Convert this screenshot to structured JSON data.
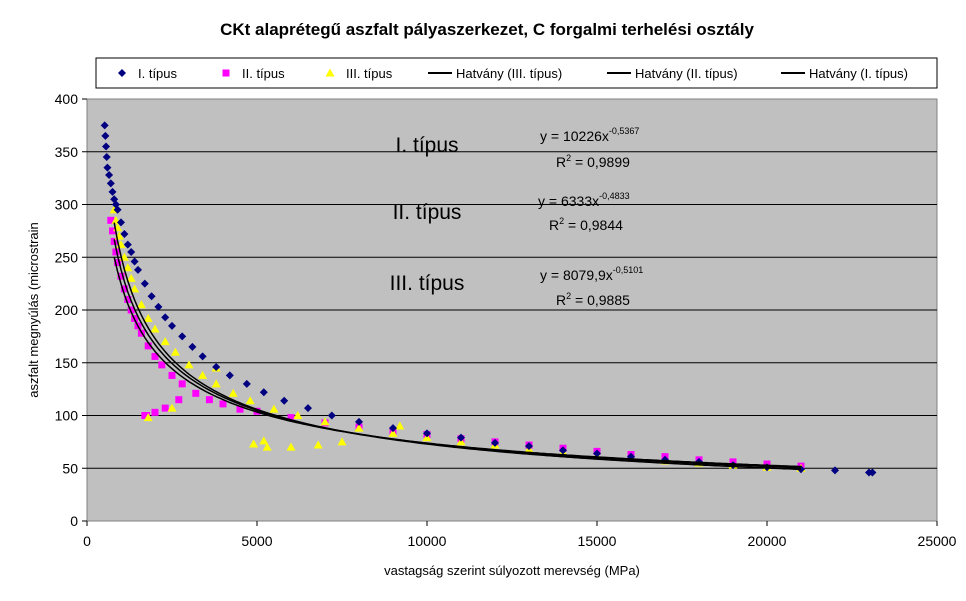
{
  "chart_data": {
    "type": "scatter",
    "title": "CKt alaprétegű aszfalt pályaszerkezet, C forgalmi terhelési osztály",
    "xlabel": "vastagság szerint súlyozott merevség (MPa)",
    "ylabel": "aszfalt megnyúlás (microstrain",
    "xlim": [
      0,
      25000
    ],
    "ylim": [
      0,
      400
    ],
    "x_ticks": [
      "0",
      "5000",
      "10000",
      "15000",
      "20000",
      "25000"
    ],
    "y_ticks": [
      "0",
      "50",
      "100",
      "150",
      "200",
      "250",
      "300",
      "350",
      "400"
    ],
    "grid": "horizontal",
    "plot_background": "#c0c0c0",
    "legend_position": "top",
    "legend": [
      {
        "label": "I. típus",
        "marker": "diamond",
        "color": "#000080"
      },
      {
        "label": "II. típus",
        "marker": "square",
        "color": "#ff00ff"
      },
      {
        "label": "III. típus",
        "marker": "triangle",
        "color": "#ffff00"
      },
      {
        "label": "Hatvány (III. típus)",
        "marker": "line",
        "color": "#000000"
      },
      {
        "label": "Hatvány (II. típus)",
        "marker": "line",
        "color": "#000000"
      },
      {
        "label": "Hatvány (I. típus)",
        "marker": "line",
        "color": "#000000"
      }
    ],
    "series": [
      {
        "name": "I. típus",
        "marker": "diamond",
        "color": "#000080",
        "points": [
          [
            520,
            375
          ],
          [
            540,
            365
          ],
          [
            560,
            355
          ],
          [
            580,
            345
          ],
          [
            600,
            335
          ],
          [
            650,
            328
          ],
          [
            700,
            320
          ],
          [
            750,
            312
          ],
          [
            800,
            305
          ],
          [
            850,
            300
          ],
          [
            900,
            295
          ],
          [
            1000,
            283
          ],
          [
            1100,
            272
          ],
          [
            1200,
            262
          ],
          [
            1300,
            255
          ],
          [
            1400,
            246
          ],
          [
            1500,
            238
          ],
          [
            1700,
            225
          ],
          [
            1900,
            213
          ],
          [
            2100,
            203
          ],
          [
            2300,
            193
          ],
          [
            2500,
            185
          ],
          [
            2800,
            175
          ],
          [
            3100,
            165
          ],
          [
            3400,
            156
          ],
          [
            3800,
            146
          ],
          [
            4200,
            138
          ],
          [
            4700,
            130
          ],
          [
            5200,
            122
          ],
          [
            5800,
            114
          ],
          [
            6500,
            107
          ],
          [
            7200,
            100
          ],
          [
            8000,
            94
          ],
          [
            9000,
            88
          ],
          [
            10000,
            83
          ],
          [
            11000,
            79
          ],
          [
            12000,
            74
          ],
          [
            13000,
            71
          ],
          [
            14000,
            67
          ],
          [
            15000,
            64
          ],
          [
            16000,
            61
          ],
          [
            17000,
            58
          ],
          [
            18000,
            56
          ],
          [
            19000,
            53
          ],
          [
            20000,
            51
          ],
          [
            21000,
            49
          ],
          [
            22000,
            48
          ],
          [
            23000,
            46
          ],
          [
            23100,
            46
          ]
        ]
      },
      {
        "name": "II. típus",
        "marker": "square",
        "color": "#ff00ff",
        "points": [
          [
            700,
            285
          ],
          [
            750,
            275
          ],
          [
            800,
            265
          ],
          [
            850,
            255
          ],
          [
            900,
            245
          ],
          [
            1000,
            232
          ],
          [
            1100,
            220
          ],
          [
            1200,
            210
          ],
          [
            1300,
            200
          ],
          [
            1400,
            192
          ],
          [
            1500,
            185
          ],
          [
            1600,
            178
          ],
          [
            1800,
            166
          ],
          [
            2000,
            156
          ],
          [
            2200,
            148
          ],
          [
            2500,
            138
          ],
          [
            2800,
            130
          ],
          [
            3200,
            121
          ],
          [
            3600,
            115
          ],
          [
            4000,
            111
          ],
          [
            4500,
            106
          ],
          [
            5000,
            104
          ],
          [
            6000,
            98
          ],
          [
            7000,
            93
          ],
          [
            8000,
            89
          ],
          [
            9000,
            85
          ],
          [
            10000,
            82
          ],
          [
            11000,
            78
          ],
          [
            12000,
            75
          ],
          [
            13000,
            72
          ],
          [
            14000,
            69
          ],
          [
            15000,
            66
          ],
          [
            16000,
            63
          ],
          [
            17000,
            61
          ],
          [
            18000,
            58
          ],
          [
            19000,
            56
          ],
          [
            20000,
            54
          ],
          [
            21000,
            52
          ],
          [
            1700,
            100
          ],
          [
            1750,
            100
          ],
          [
            2000,
            103
          ],
          [
            2300,
            107
          ],
          [
            2700,
            115
          ]
        ]
      },
      {
        "name": "III. típus",
        "marker": "triangle",
        "color": "#ffff00",
        "points": [
          [
            800,
            295
          ],
          [
            850,
            285
          ],
          [
            900,
            278
          ],
          [
            950,
            270
          ],
          [
            1000,
            262
          ],
          [
            1100,
            250
          ],
          [
            1200,
            240
          ],
          [
            1300,
            230
          ],
          [
            1400,
            220
          ],
          [
            1600,
            205
          ],
          [
            1800,
            192
          ],
          [
            2000,
            182
          ],
          [
            2300,
            170
          ],
          [
            2600,
            160
          ],
          [
            3000,
            148
          ],
          [
            3400,
            138
          ],
          [
            3800,
            130
          ],
          [
            4300,
            121
          ],
          [
            4800,
            114
          ],
          [
            5500,
            106
          ],
          [
            6200,
            100
          ],
          [
            7000,
            94
          ],
          [
            8000,
            88
          ],
          [
            9000,
            83
          ],
          [
            10000,
            79
          ],
          [
            11000,
            75
          ],
          [
            12000,
            72
          ],
          [
            13000,
            68
          ],
          [
            14000,
            65
          ],
          [
            15000,
            62
          ],
          [
            16000,
            60
          ],
          [
            17000,
            57
          ],
          [
            18000,
            55
          ],
          [
            19000,
            53
          ],
          [
            20000,
            51
          ],
          [
            21000,
            50
          ],
          [
            3800,
            145
          ],
          [
            9200,
            90
          ],
          [
            4900,
            73
          ],
          [
            5200,
            76
          ],
          [
            5300,
            70
          ],
          [
            6000,
            70
          ],
          [
            6800,
            72
          ],
          [
            7500,
            75
          ],
          [
            1800,
            98
          ],
          [
            2500,
            107
          ]
        ]
      }
    ],
    "trendlines": [
      {
        "name": "Hatvány (III. típus)",
        "a": 8079.9,
        "b": -0.5101,
        "x_range": [
          800,
          21000
        ],
        "color": "#000000"
      },
      {
        "name": "Hatvány (II. típus)",
        "a": 6333,
        "b": -0.4833,
        "x_range": [
          800,
          21000
        ],
        "color": "#000000"
      },
      {
        "name": "Hatvány (I. típus)",
        "a": 10226,
        "b": -0.5367,
        "x_range": [
          800,
          21000
        ],
        "color": "#000000"
      }
    ],
    "annotations": {
      "type1_label": "I. típus",
      "type2_label": "II. típus",
      "type3_label": "III. típus",
      "eq1_base": "y = 10226x",
      "eq1_exp": "-0,5367",
      "r1_prefix": "R",
      "r1_sup": "2",
      "r1_value": " = 0,9899",
      "eq2_base": "y = 6333x",
      "eq2_exp": "-0,4833",
      "r2_prefix": "R",
      "r2_sup": "2",
      "r2_value": " = 0,9844",
      "eq3_base": "y = 8079,9x",
      "eq3_exp": "-0,5101",
      "r3_prefix": "R",
      "r3_sup": "2",
      "r3_value": " = 0,9885"
    }
  }
}
